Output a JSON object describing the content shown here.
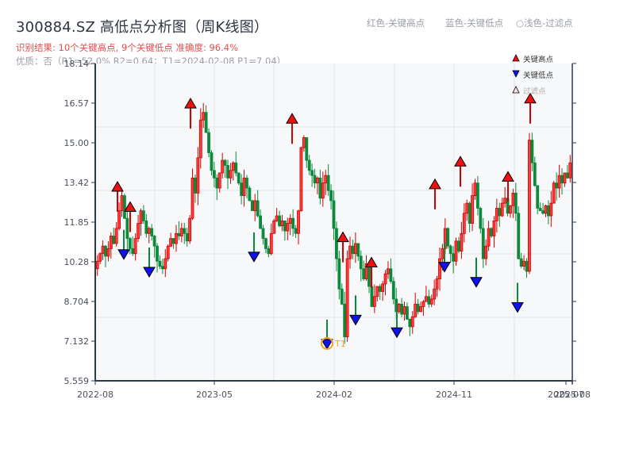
{
  "header": {
    "title": "300884.SZ 高低点分析图（周K线图）",
    "result_line": "识别结果: 10个关键高点, 9个关键低点  准确度: 96.4%",
    "quality_line": "优质：否（R1=52.0%  R2=0.64；T1=2024-02-08 P1=7.04）",
    "top_legend": [
      "红色-关键高点",
      "蓝色-关键低点",
      "○浅色-过滤点"
    ]
  },
  "legend": {
    "items": [
      {
        "label": "关键高点",
        "symbol": "triangle-up",
        "color": "#ee1111"
      },
      {
        "label": "关键低点",
        "symbol": "triangle-down",
        "color": "#1111ee"
      },
      {
        "label": "过滤点",
        "symbol": "triangle-up-faded",
        "color": "#ffcccc"
      }
    ]
  },
  "colors": {
    "up": "#d40000",
    "down": "#0a8a3a",
    "high_marker": "#ee1111",
    "low_marker": "#1111ee",
    "t1_ring": "#f5a623",
    "axis": "#2d3a4a",
    "grid": "#e2e5ea",
    "plot_bg": "#f7f8fa"
  },
  "chart_data": {
    "type": "candlestick",
    "title": "300884.SZ 高低点分析图（周K线图）",
    "xlabel": "",
    "ylabel": "",
    "ylim": [
      5.559,
      18.14
    ],
    "yticks": [
      "18.14",
      "16.57",
      "15.00",
      "13.42",
      "11.85",
      "10.28",
      "8.704",
      "7.132",
      "5.559"
    ],
    "xticks": [
      "2022-08",
      "2023-05",
      "2024-02",
      "2024-11",
      "2025-07",
      "2025-08"
    ],
    "grid": true,
    "key_highs": [
      {
        "x": 148,
        "price": 13.2
      },
      {
        "x": 164,
        "price": 12.4
      },
      {
        "x": 240,
        "price": 16.5
      },
      {
        "x": 368,
        "price": 15.9
      },
      {
        "x": 432,
        "price": 11.2
      },
      {
        "x": 468,
        "price": 10.2
      },
      {
        "x": 548,
        "price": 13.3
      },
      {
        "x": 580,
        "price": 14.2
      },
      {
        "x": 640,
        "price": 13.6
      },
      {
        "x": 668,
        "price": 16.7
      }
    ],
    "key_lows": [
      {
        "x": 156,
        "price": 10.6
      },
      {
        "x": 188,
        "price": 9.9
      },
      {
        "x": 320,
        "price": 10.5
      },
      {
        "x": 412,
        "price": 7.04,
        "label": "T1"
      },
      {
        "x": 448,
        "price": 8.0
      },
      {
        "x": 500,
        "price": 7.5
      },
      {
        "x": 560,
        "price": 10.1
      },
      {
        "x": 600,
        "price": 9.5
      },
      {
        "x": 652,
        "price": 8.5
      }
    ],
    "t1": {
      "date": "2024-02-08",
      "price": 7.04,
      "label": "T1"
    },
    "closes": [
      10.3,
      10.6,
      10.9,
      10.5,
      10.8,
      11.3,
      11.0,
      11.6,
      12.3,
      12.9,
      12.0,
      11.2,
      10.8,
      10.6,
      11.2,
      11.8,
      12.3,
      11.9,
      11.4,
      11.6,
      11.3,
      10.9,
      10.3,
      10.1,
      10.0,
      10.4,
      10.9,
      11.2,
      11.0,
      11.4,
      11.3,
      11.6,
      11.4,
      11.1,
      12.0,
      13.6,
      13.0,
      14.4,
      15.9,
      16.2,
      15.4,
      14.6,
      13.9,
      13.6,
      13.2,
      13.8,
      14.3,
      14.1,
      13.6,
      13.9,
      14.2,
      13.8,
      13.4,
      12.9,
      13.6,
      13.2,
      12.7,
      12.3,
      12.7,
      12.1,
      11.6,
      11.2,
      10.8,
      10.6,
      11.4,
      11.9,
      12.1,
      11.7,
      11.9,
      11.5,
      11.8,
      12.0,
      11.6,
      11.4,
      12.3,
      14.8,
      15.2,
      14.3,
      13.9,
      13.7,
      13.4,
      13.6,
      12.8,
      13.4,
      13.7,
      13.1,
      12.7,
      11.6,
      10.4,
      9.2,
      8.6,
      7.3,
      10.4,
      10.9,
      10.6,
      11.0,
      10.5,
      10.0,
      9.6,
      10.2,
      9.3,
      8.5,
      8.9,
      9.3,
      9.1,
      9.4,
      9.8,
      10.0,
      9.5,
      8.8,
      8.3,
      8.6,
      8.2,
      8.5,
      8.0,
      7.7,
      8.1,
      8.6,
      8.3,
      8.5,
      8.7,
      8.9,
      8.6,
      8.8,
      9.2,
      9.6,
      10.4,
      10.8,
      11.6,
      10.9,
      10.6,
      10.3,
      11.1,
      10.7,
      11.4,
      12.2,
      12.6,
      11.8,
      12.9,
      13.4,
      12.4,
      11.6,
      10.4,
      10.9,
      11.6,
      11.3,
      11.9,
      12.4,
      12.1,
      12.6,
      12.8,
      12.2,
      12.5,
      13.0,
      12.2,
      10.4,
      10.1,
      10.3,
      9.9,
      15.1,
      14.2,
      13.3,
      12.4,
      12.3,
      12.2,
      12.5,
      12.1,
      12.6,
      13.4,
      13.2,
      13.7,
      13.4,
      13.8,
      13.6,
      14.2
    ]
  }
}
